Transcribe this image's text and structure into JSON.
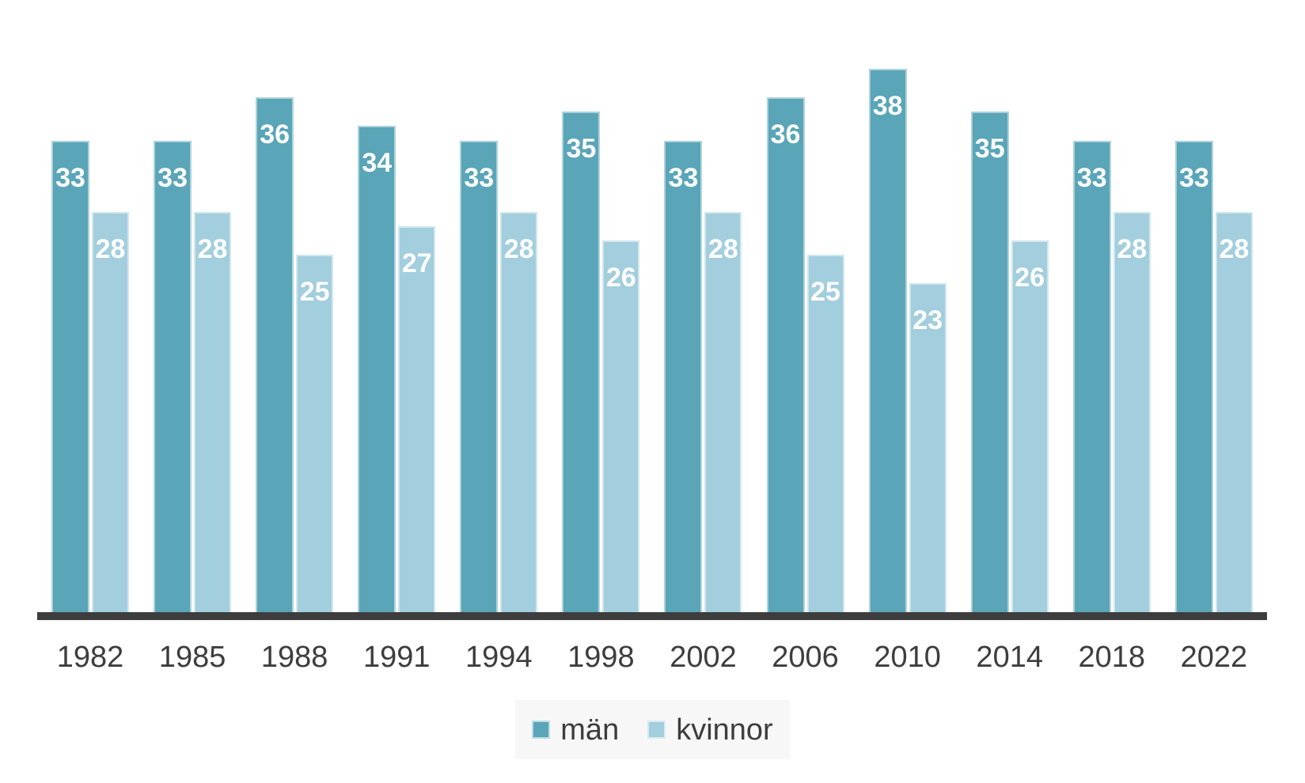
{
  "chart_data": {
    "type": "bar",
    "title": "",
    "xlabel": "",
    "ylabel": "",
    "categories": [
      "1982",
      "1985",
      "1988",
      "1991",
      "1994",
      "1998",
      "2002",
      "2006",
      "2010",
      "2014",
      "2018",
      "2022"
    ],
    "series": [
      {
        "name": "män",
        "color": "#5aa5b8",
        "values": [
          33,
          33,
          36,
          34,
          33,
          35,
          33,
          36,
          38,
          35,
          33,
          33
        ]
      },
      {
        "name": "kvinnor",
        "color": "#a2cedd",
        "values": [
          28,
          28,
          25,
          27,
          28,
          26,
          28,
          25,
          23,
          26,
          28,
          28
        ]
      }
    ],
    "ylim": [
      0,
      40
    ],
    "grid": false,
    "bar_value_labels": true,
    "legend_position": "bottom-center"
  },
  "colors": {
    "axis_line": "#3d3d3d",
    "tick_label_text": "#3d3d3d",
    "bar_label_text": "#ffffff",
    "legend_background": "#f7f7f7",
    "background": "#ffffff"
  }
}
